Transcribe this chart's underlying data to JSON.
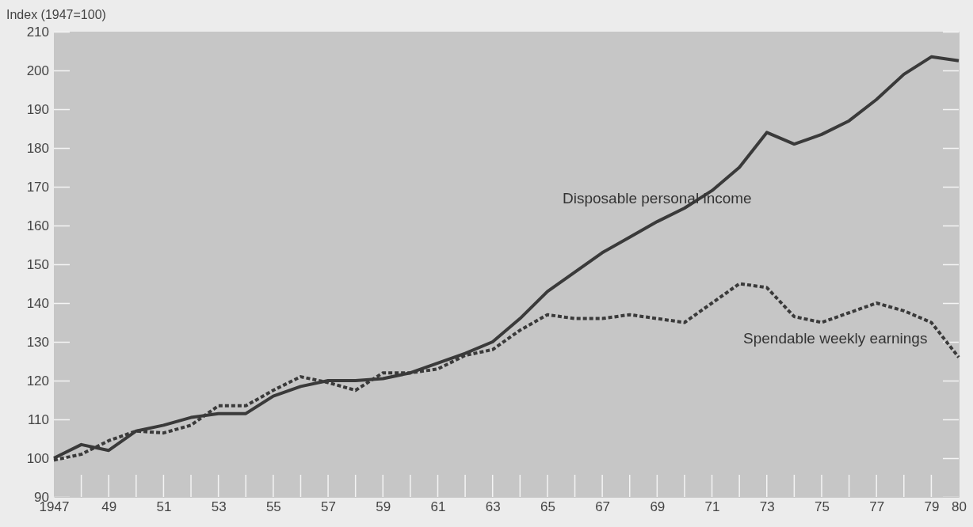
{
  "chart_data": {
    "type": "line",
    "ylabel": "Index (1947=100)",
    "x": [
      1947,
      1948,
      1949,
      1950,
      1951,
      1952,
      1953,
      1954,
      1955,
      1956,
      1957,
      1958,
      1959,
      1960,
      1961,
      1962,
      1963,
      1964,
      1965,
      1966,
      1967,
      1968,
      1969,
      1970,
      1971,
      1972,
      1973,
      1974,
      1975,
      1976,
      1977,
      1978,
      1979,
      1980
    ],
    "series": [
      {
        "name": "Disposable personal income",
        "color": "#3a3a3a",
        "line_style": "solid",
        "values": [
          100,
          103.5,
          102,
          107,
          108.5,
          110.5,
          111.5,
          111.5,
          116,
          118.5,
          120,
          120,
          120.5,
          122,
          124.5,
          127,
          130,
          136,
          143,
          148,
          153,
          157,
          161,
          164.5,
          169,
          175,
          184,
          181,
          183.5,
          187,
          192.5,
          199,
          203.5,
          202.5
        ]
      },
      {
        "name": "Spendable weekly earnings",
        "color": "#3a3a3a",
        "line_style": "dotted",
        "values": [
          99.5,
          101,
          104.5,
          107,
          106.5,
          108.5,
          113.5,
          113.5,
          117.5,
          121,
          119.5,
          117.5,
          122,
          122,
          123,
          126.5,
          128,
          133,
          137,
          136,
          136,
          137,
          136,
          135,
          140,
          145,
          144,
          136.5,
          135,
          137.5,
          140,
          138,
          135,
          126
        ]
      }
    ],
    "xlim": [
      1947,
      1980
    ],
    "xticks": [
      {
        "value": 1947,
        "label": "1947"
      },
      {
        "value": 1949,
        "label": "49"
      },
      {
        "value": 1951,
        "label": "51"
      },
      {
        "value": 1953,
        "label": "53"
      },
      {
        "value": 1955,
        "label": "55"
      },
      {
        "value": 1957,
        "label": "57"
      },
      {
        "value": 1959,
        "label": "59"
      },
      {
        "value": 1961,
        "label": "61"
      },
      {
        "value": 1963,
        "label": "63"
      },
      {
        "value": 1965,
        "label": "65"
      },
      {
        "value": 1967,
        "label": "67"
      },
      {
        "value": 1969,
        "label": "69"
      },
      {
        "value": 1971,
        "label": "71"
      },
      {
        "value": 1973,
        "label": "73"
      },
      {
        "value": 1975,
        "label": "75"
      },
      {
        "value": 1977,
        "label": "77"
      },
      {
        "value": 1979,
        "label": "79"
      },
      {
        "value": 1980,
        "label": "80"
      }
    ],
    "ylim": [
      90,
      210
    ],
    "yticks": [
      90,
      100,
      110,
      120,
      130,
      140,
      150,
      160,
      170,
      180,
      190,
      200,
      210
    ],
    "grid": false
  }
}
